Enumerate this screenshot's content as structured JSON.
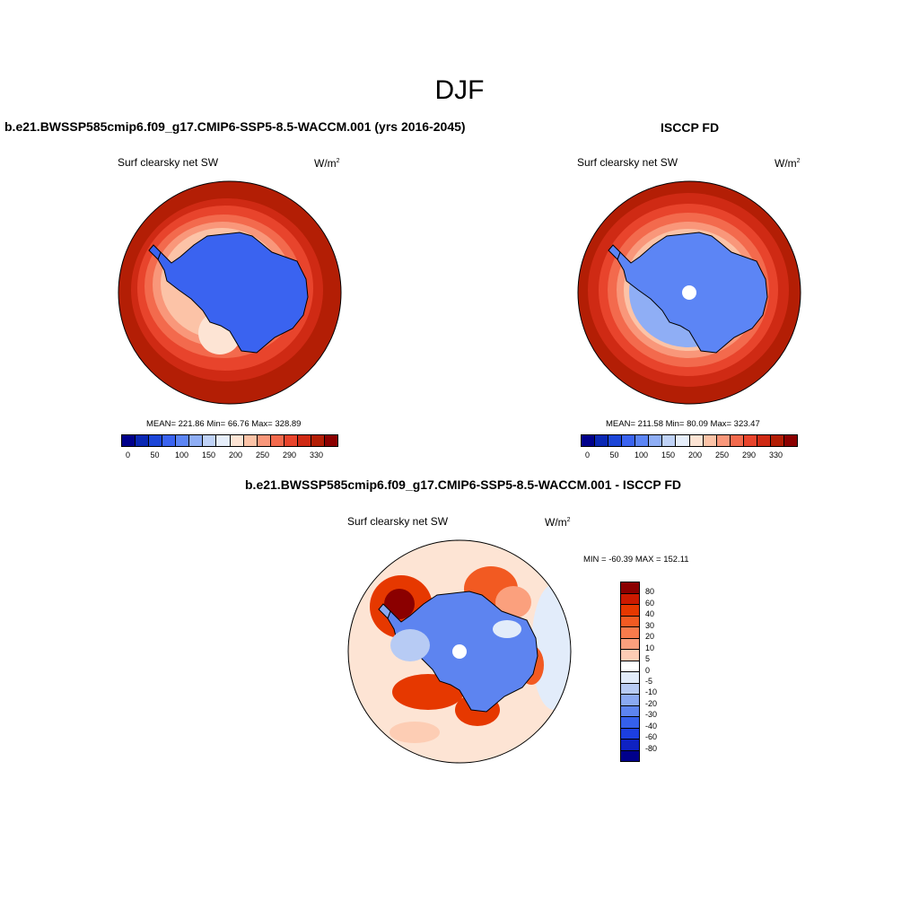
{
  "figure": {
    "title": "DJF"
  },
  "panel_model": {
    "title": "b.e21.BWSSP585cmip6.f09_g17.CMIP6-SSP5-8.5-WACCM.001 (yrs 2016-2045)",
    "field": "Surf clearsky net SW",
    "units_base": "W/m",
    "units_exp": "2",
    "stats": "MEAN= 221.86  Min=  66.76  Max= 328.89"
  },
  "panel_obs": {
    "title": "ISCCP FD",
    "field": "Surf clearsky net SW",
    "units_base": "W/m",
    "units_exp": "2",
    "stats": "MEAN= 211.58  Min=  80.09  Max= 323.47"
  },
  "panel_diff": {
    "title": "b.e21.BWSSP585cmip6.f09_g17.CMIP6-SSP5-8.5-WACCM.001 - ISCCP FD",
    "field": "Surf clearsky net SW",
    "units_base": "W/m",
    "units_exp": "2",
    "stats": "MIN = -60.39 MAX = 152.11"
  },
  "colorbar_abs": {
    "colors": [
      "#00008b",
      "#0a28b4",
      "#1c46d8",
      "#3a63f0",
      "#5c85f5",
      "#8faef5",
      "#bfd2f7",
      "#e6eefa",
      "#fde4d4",
      "#fcc3a7",
      "#f9977a",
      "#f36a4d",
      "#e8442c",
      "#cf2a14",
      "#b31e05",
      "#8b0000"
    ],
    "ticks": [
      "0",
      "50",
      "100",
      "150",
      "200",
      "250",
      "290",
      "330"
    ]
  },
  "colorbar_diff": {
    "colors": [
      "#8b0000",
      "#cc1a00",
      "#e63800",
      "#f25a22",
      "#f77b4c",
      "#fba07d",
      "#fdcdb4",
      "#ffffff",
      "#e2ecfa",
      "#b7cbf4",
      "#8aa9f2",
      "#5d84f0",
      "#3560ec",
      "#1c3fe0",
      "#0f22c2",
      "#00008b"
    ],
    "ticks": [
      "80",
      "60",
      "40",
      "30",
      "20",
      "10",
      "5",
      "0",
      "-5",
      "-10",
      "-20",
      "-30",
      "-40",
      "-60",
      "-80"
    ]
  },
  "chart_data": [
    {
      "type": "heatmap",
      "title": "b.e21.BWSSP585cmip6.f09_g17.CMIP6-SSP5-8.5-WACCM.001 (yrs 2016-2045)",
      "variable": "Surf clearsky net SW",
      "units": "W/m2",
      "projection": "south polar stereographic",
      "mean": 221.86,
      "min": 66.76,
      "max": 328.89,
      "levels": [
        0,
        50,
        100,
        150,
        200,
        250,
        290,
        330
      ]
    },
    {
      "type": "heatmap",
      "title": "ISCCP FD",
      "variable": "Surf clearsky net SW",
      "units": "W/m2",
      "projection": "south polar stereographic",
      "mean": 211.58,
      "min": 80.09,
      "max": 323.47,
      "levels": [
        0,
        50,
        100,
        150,
        200,
        250,
        290,
        330
      ]
    },
    {
      "type": "heatmap",
      "title": "b.e21.BWSSP585cmip6.f09_g17.CMIP6-SSP5-8.5-WACCM.001 - ISCCP FD",
      "variable": "Surf clearsky net SW",
      "units": "W/m2",
      "projection": "south polar stereographic",
      "min": -60.39,
      "max": 152.11,
      "levels": [
        -80,
        -60,
        -40,
        -30,
        -20,
        -10,
        -5,
        0,
        5,
        10,
        20,
        30,
        40,
        60,
        80
      ]
    }
  ]
}
